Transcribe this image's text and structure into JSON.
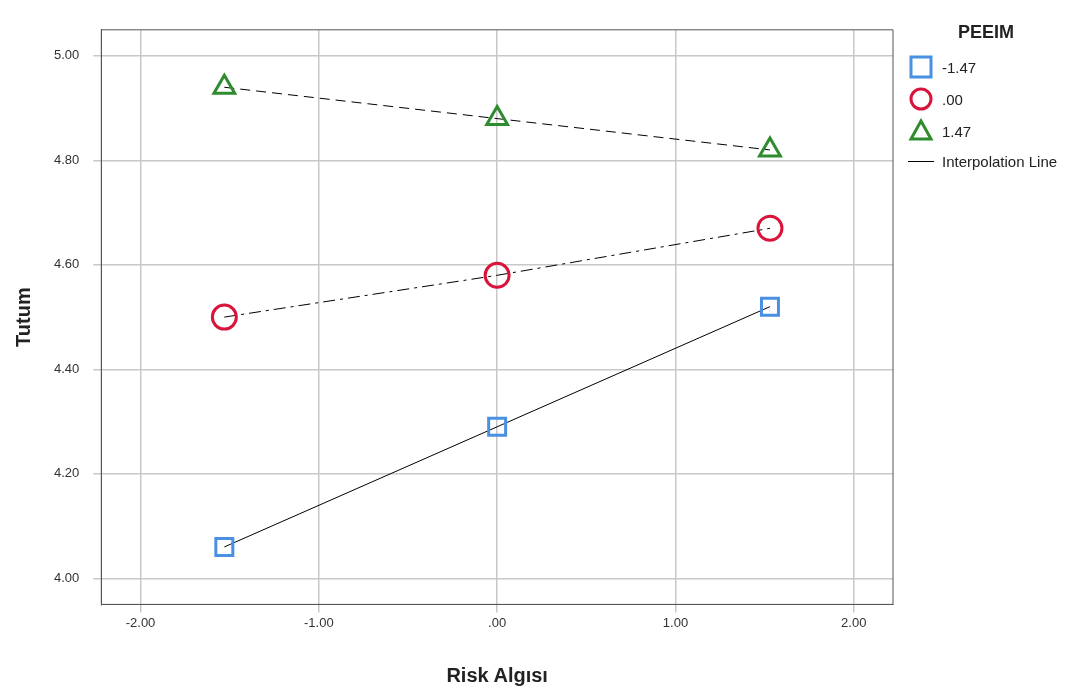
{
  "chart_data": {
    "type": "line",
    "xlabel": "Risk Algısı",
    "ylabel": "Tutum",
    "legend_title": "PEEIM",
    "legend": "right",
    "grid": true,
    "xlim": [
      -2.22,
      2.22
    ],
    "ylim": [
      3.95,
      5.05
    ],
    "xticks": [
      {
        "value": -2,
        "label": "-2.00"
      },
      {
        "value": -1,
        "label": "-1.00"
      },
      {
        "value": 0,
        "label": ".00"
      },
      {
        "value": 1,
        "label": "1.00"
      },
      {
        "value": 2,
        "label": "2.00"
      }
    ],
    "yticks": [
      {
        "value": 4,
        "label": "4.00"
      },
      {
        "value": 4.2,
        "label": "4.20"
      },
      {
        "value": 4.4,
        "label": "4.40"
      },
      {
        "value": 4.6,
        "label": "4.60"
      },
      {
        "value": 4.8,
        "label": "4.80"
      },
      {
        "value": 5,
        "label": "5.00"
      }
    ],
    "series": [
      {
        "name": "-1.47",
        "color": "#4a90e2",
        "x": [
          -1.53,
          0,
          1.53
        ],
        "values": [
          4.06,
          4.29,
          4.52
        ],
        "marker": "square",
        "line_style": "solid"
      },
      {
        "name": ".00",
        "color": "#d9143a",
        "x": [
          -1.53,
          0,
          1.53
        ],
        "values": [
          4.5,
          4.58,
          4.67
        ],
        "marker": "circle",
        "line_style": "dashdot"
      },
      {
        "name": "1.47",
        "color": "#2e8b2e",
        "x": [
          -1.53,
          0,
          1.53
        ],
        "values": [
          4.94,
          4.88,
          4.82
        ],
        "marker": "triangle",
        "line_style": "dashed"
      }
    ],
    "annotations": [
      "Interpolation Line"
    ]
  }
}
